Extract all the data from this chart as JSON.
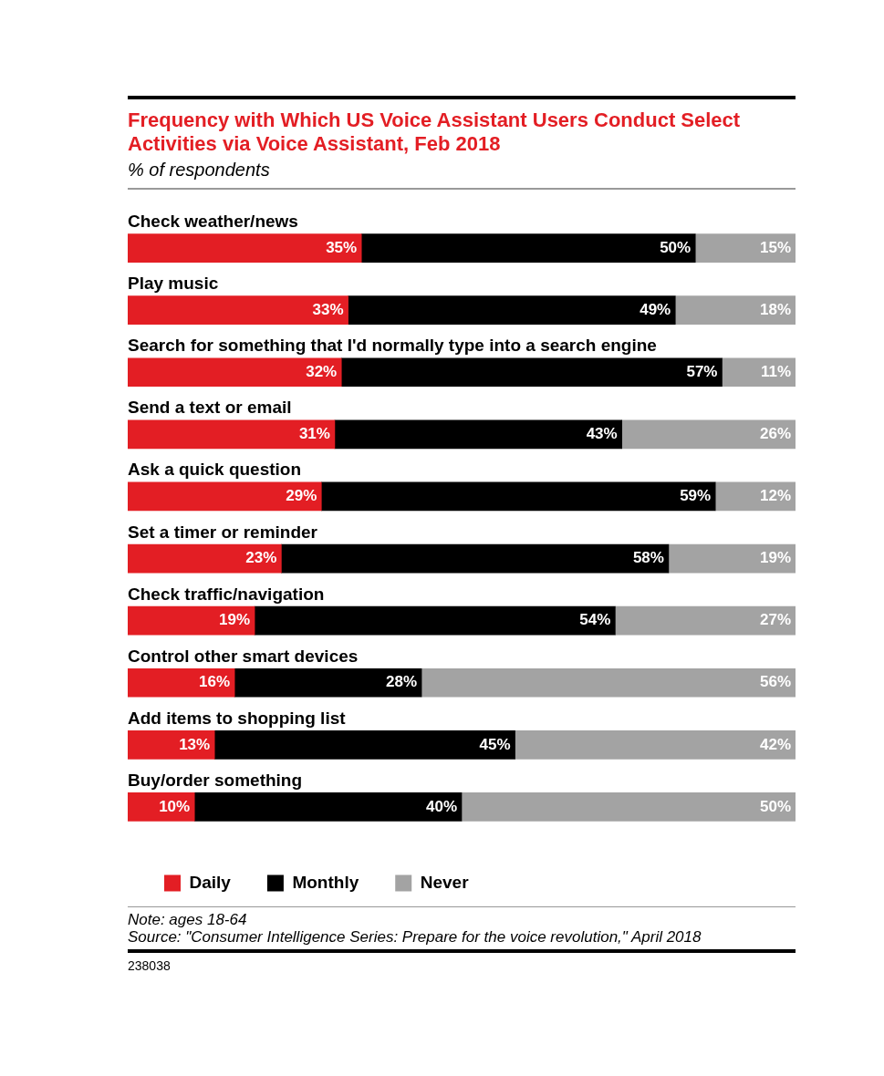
{
  "chart_data": {
    "type": "bar",
    "orientation": "horizontal",
    "stacked": true,
    "title": "Frequency with Which US Voice Assistant Users Conduct Select Activities via Voice Assistant, Feb 2018",
    "subtitle": "% of respondents",
    "categories": [
      "Check weather/news",
      "Play music",
      "Search for something that I'd normally type into a search engine",
      "Send a text or email",
      "Ask a quick question",
      "Set a timer or reminder",
      "Check traffic/navigation",
      "Control other smart devices",
      "Add items to shopping list",
      "Buy/order something"
    ],
    "series": [
      {
        "name": "Daily",
        "color": "#e31e24",
        "values": [
          35,
          33,
          32,
          31,
          29,
          23,
          19,
          16,
          13,
          10
        ],
        "value_labels": [
          "35%",
          "33%",
          "32%",
          "31%",
          "29%",
          "23%",
          "19%",
          "16%",
          "13%",
          "10%"
        ]
      },
      {
        "name": "Monthly",
        "color": "#000000",
        "values": [
          50,
          49,
          57,
          43,
          59,
          58,
          54,
          28,
          45,
          40
        ],
        "value_labels": [
          "50%",
          "49%",
          "57%",
          "43%",
          "59%",
          "58%",
          "54%",
          "28%",
          "45%",
          "40%"
        ]
      },
      {
        "name": "Never",
        "color": "#a3a3a3",
        "values": [
          15,
          18,
          11,
          26,
          12,
          19,
          27,
          56,
          42,
          50
        ],
        "value_labels": [
          "15%",
          "18%",
          "11%",
          "26%",
          "12%",
          "19%",
          "27%",
          "56%",
          "42%",
          "50%"
        ]
      }
    ],
    "xlim": [
      0,
      100
    ],
    "grid": false,
    "tick_labels": false,
    "legend": "bottom",
    "annotations": [
      "Note: ages 18-64",
      "Source: \"Consumer Intelligence Series: Prepare for the voice revolution,\" April 2018",
      "238038"
    ]
  }
}
